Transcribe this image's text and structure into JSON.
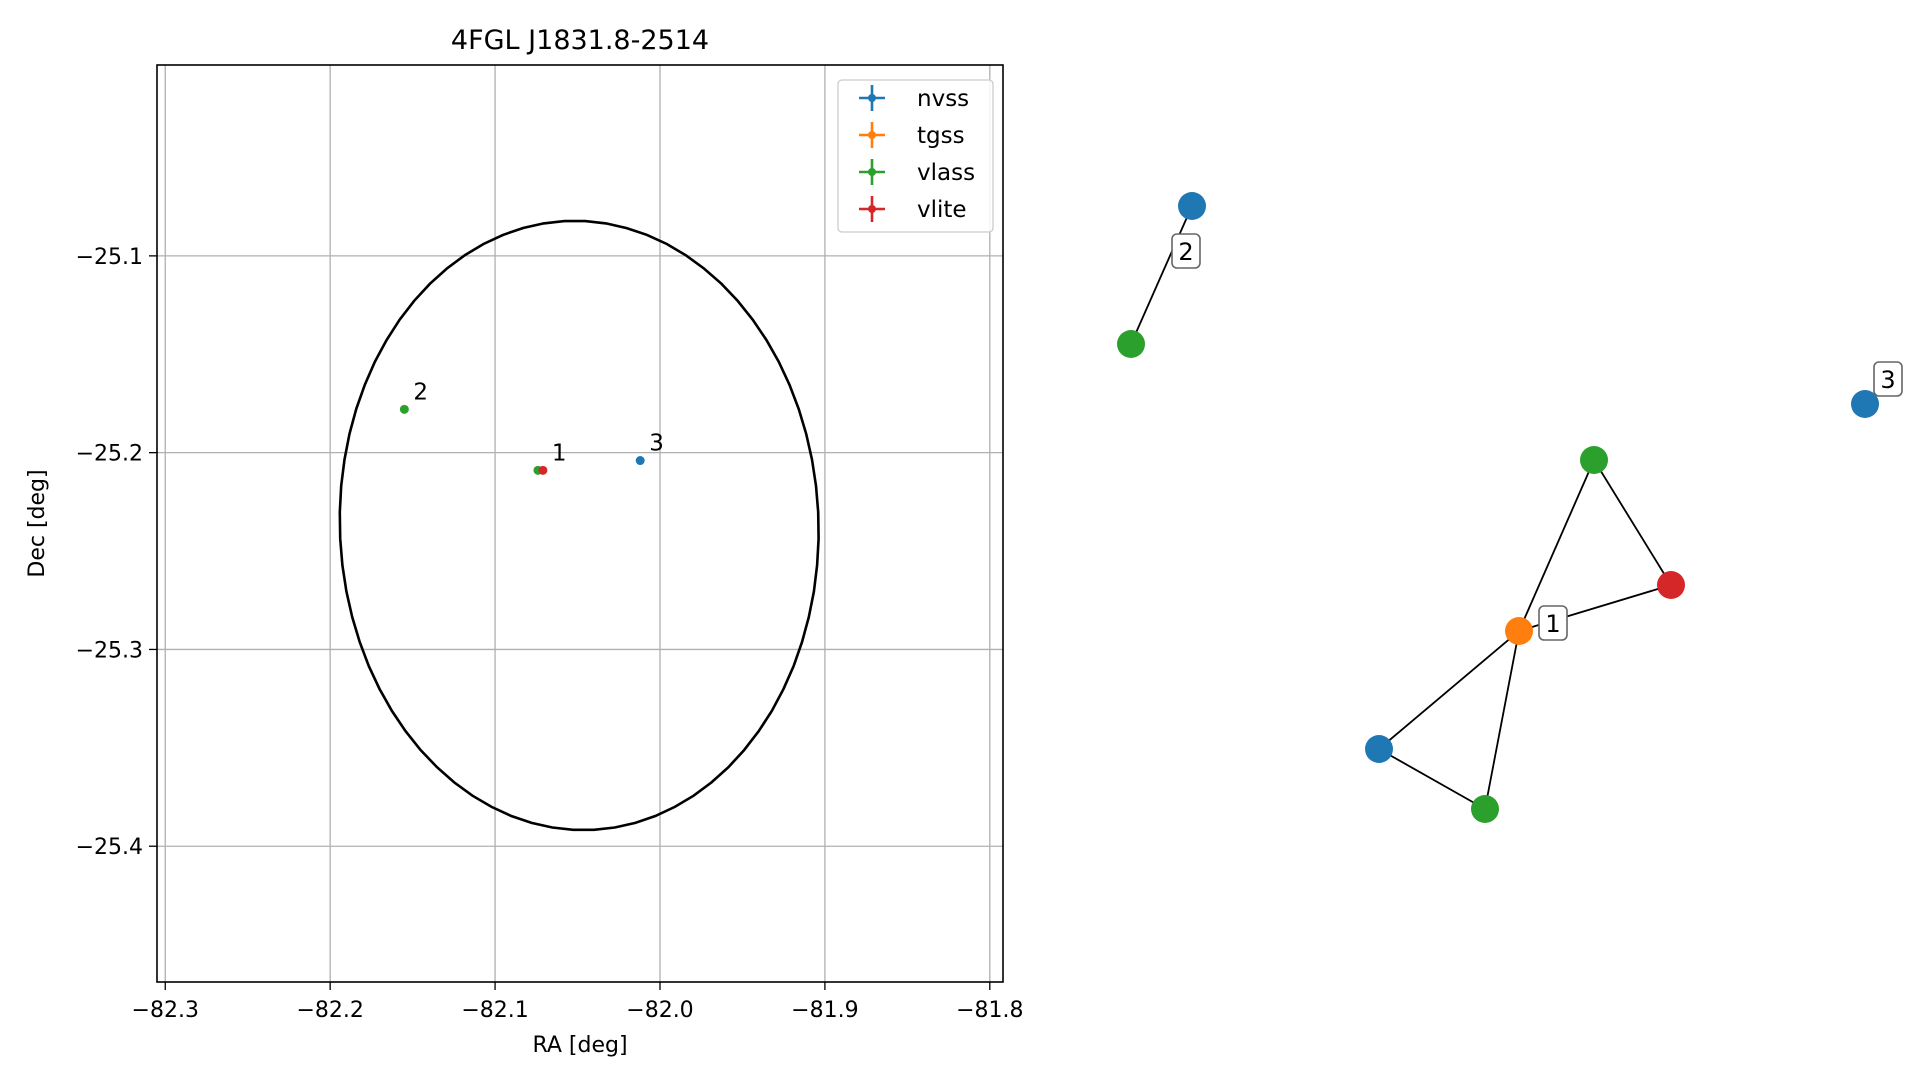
{
  "chart_data": [
    {
      "type": "scatter",
      "title": "4FGL J1831.8-2514",
      "xlabel": "RA [deg]",
      "ylabel": "Dec [deg]",
      "xlim": [
        -82.305,
        -81.792
      ],
      "ylim": [
        -25.469,
        -25.003
      ],
      "xticks": [
        -82.3,
        -82.2,
        -82.1,
        -82.0,
        -81.9,
        -81.8
      ],
      "xtick_labels": [
        "−82.3",
        "−82.2",
        "−82.1",
        "−82.0",
        "−81.9",
        "−81.8"
      ],
      "yticks": [
        -25.1,
        -25.2,
        -25.3,
        -25.4
      ],
      "ytick_labels": [
        "−25.1",
        "−25.2",
        "−25.3",
        "−25.4"
      ],
      "grid": true,
      "legend_position": "top-right",
      "series": [
        {
          "name": "nvss",
          "color": "#1f77b4",
          "points": [
            {
              "x": -82.012,
              "y": -25.204
            }
          ]
        },
        {
          "name": "tgss",
          "color": "#ff7f0e",
          "points": []
        },
        {
          "name": "vlass",
          "color": "#2ca02c",
          "points": [
            {
              "x": -82.074,
              "y": -25.209
            },
            {
              "x": -82.155,
              "y": -25.178
            }
          ]
        },
        {
          "name": "vlite",
          "color": "#d62728",
          "points": [
            {
              "x": -82.071,
              "y": -25.209
            }
          ]
        }
      ],
      "annotations": [
        {
          "text": "1",
          "x": -82.071,
          "y": -25.209
        },
        {
          "text": "2",
          "x": -82.155,
          "y": -25.178
        },
        {
          "text": "3",
          "x": -82.012,
          "y": -25.204
        }
      ],
      "ellipse": {
        "center": {
          "x": -82.049,
          "y": -25.237
        },
        "semi_major": 0.145,
        "semi_minor": 0.155,
        "angle_deg": 8,
        "color": "#000000"
      }
    },
    {
      "type": "network",
      "nodes": [
        {
          "id": "n1",
          "color": "#1f77b4",
          "label": "2"
        },
        {
          "id": "n2",
          "color": "#2ca02c",
          "label": ""
        },
        {
          "id": "n3",
          "color": "#1f77b4",
          "label": "3"
        },
        {
          "id": "n4",
          "color": "#2ca02c",
          "label": ""
        },
        {
          "id": "n5",
          "color": "#d62728",
          "label": ""
        },
        {
          "id": "n6",
          "color": "#ff7f0e",
          "label": "1"
        },
        {
          "id": "n7",
          "color": "#1f77b4",
          "label": ""
        },
        {
          "id": "n8",
          "color": "#2ca02c",
          "label": ""
        }
      ],
      "edges": [
        [
          "n1",
          "n2"
        ],
        [
          "n4",
          "n5"
        ],
        [
          "n4",
          "n6"
        ],
        [
          "n5",
          "n6"
        ],
        [
          "n6",
          "n7"
        ],
        [
          "n6",
          "n8"
        ],
        [
          "n7",
          "n8"
        ]
      ]
    }
  ]
}
